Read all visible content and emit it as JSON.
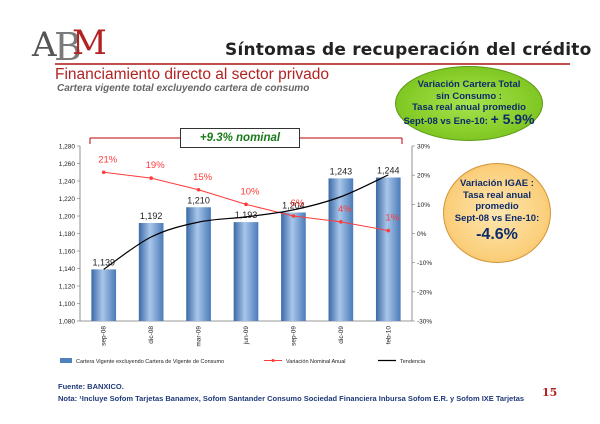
{
  "logo": {
    "text_a": "A",
    "text_b": "B",
    "text_m": "M"
  },
  "slide_title": "Síntomas de recuperación del crédito",
  "section_title": "Financiamiento directo al sector privado",
  "section_subtitle": "Cartera vigente total excluyendo cartera de consumo",
  "callout_green": {
    "line1": "Variación Cartera Total",
    "line2": "sin Consumo :",
    "line3": "Tasa real anual promedio",
    "line4": "Sept-08 vs Ene-10:",
    "value": "+ 5.9%"
  },
  "callout_orange": {
    "line1": "Variación IGAE :",
    "line2": "Tasa real anual",
    "line3": "promedio",
    "line4": "Sept-08 vs Ene-10:",
    "value": "-4.6%"
  },
  "nominal_label": "+9.3% nominal",
  "footer": {
    "source": "Fuente:  BANXICO.",
    "note": "Nota: ¹Incluye Sofom Tarjetas Banamex, Sofom Santander Consumo Sociedad Financiera Inbursa Sofom E.R. y Sofom IXE Tarjetas"
  },
  "page_number": "15",
  "colors": {
    "bar": "#4f81bd",
    "nominal_line": "#ff3b3b",
    "trend": "#000000",
    "accent": "#b22222"
  },
  "chart_data": {
    "type": "bar",
    "categories": [
      "sep-08",
      "dic-08",
      "mar-09",
      "jun-09",
      "sep-09",
      "dic-09",
      "feb-10"
    ],
    "series": [
      {
        "name": "Cartera Vigente excluyendo Cartera de Vigente de Consumo",
        "type": "bar",
        "axis": "left",
        "values": [
          1139,
          1192,
          1210,
          1193,
          1204,
          1243,
          1244
        ],
        "labels": [
          "1,139",
          "1,192",
          "1,210",
          "1,193",
          "1,204",
          "1,243",
          "1,244"
        ]
      },
      {
        "name": "Variación Nominal Anual",
        "type": "line",
        "axis": "right",
        "values": [
          21,
          19,
          15,
          10,
          6,
          4,
          1
        ],
        "labels": [
          "21%",
          "19%",
          "15%",
          "10%",
          "6%",
          "4%",
          "1%"
        ]
      },
      {
        "name": "Tendencia",
        "type": "line",
        "axis": "left",
        "values": [
          1139,
          1176,
          1193,
          1199,
          1207,
          1222,
          1247
        ]
      }
    ],
    "ylim": [
      1080,
      1280
    ],
    "yticks": [
      "1,080",
      "1,100",
      "1,120",
      "1,140",
      "1,160",
      "1,180",
      "1,200",
      "1,220",
      "1,240",
      "1,260",
      "1,280"
    ],
    "y2lim": [
      -30,
      30
    ],
    "y2ticks": [
      "-30%",
      "-20%",
      "-10%",
      "0%",
      "10%",
      "20%",
      "30%"
    ],
    "legend_position": "bottom"
  }
}
